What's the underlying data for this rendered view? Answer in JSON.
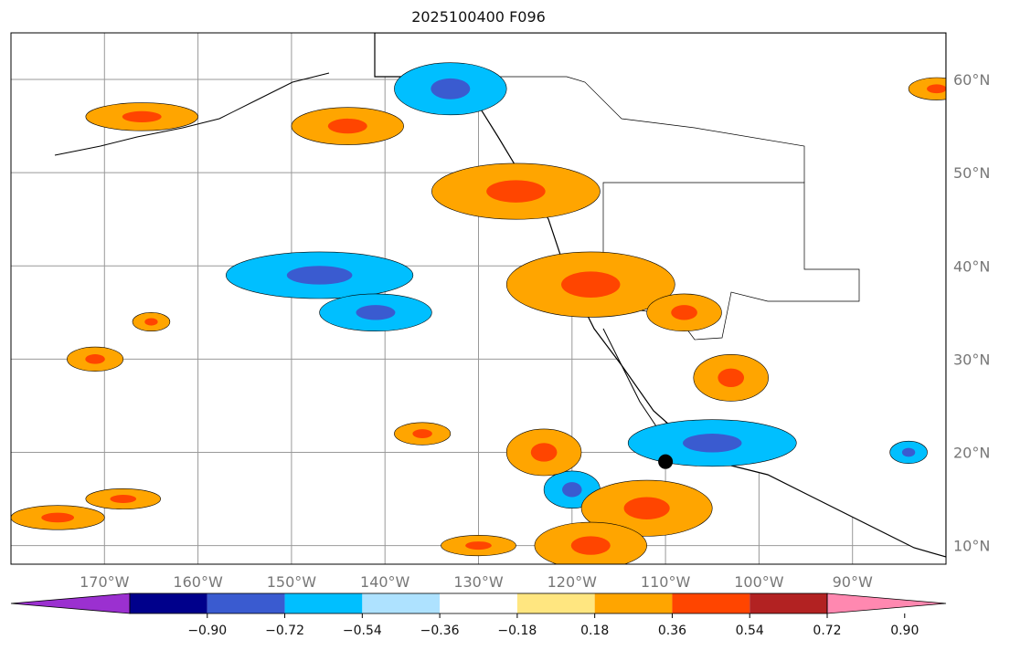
{
  "title": "2025100400 F096",
  "map": {
    "lon_range": [
      -180,
      -80
    ],
    "lat_range": [
      8,
      65
    ],
    "graticule": true,
    "lon_ticks": [
      {
        "v": -170,
        "label": "170°W"
      },
      {
        "v": -160,
        "label": "160°W"
      },
      {
        "v": -150,
        "label": "150°W"
      },
      {
        "v": -140,
        "label": "140°W"
      },
      {
        "v": -130,
        "label": "130°W"
      },
      {
        "v": -120,
        "label": "120°W"
      },
      {
        "v": -110,
        "label": "110°W"
      },
      {
        "v": -100,
        "label": "100°W"
      },
      {
        "v": -90,
        "label": "90°W"
      }
    ],
    "lat_ticks": [
      {
        "v": 60,
        "label": "60°N"
      },
      {
        "v": 50,
        "label": "50°N"
      },
      {
        "v": 40,
        "label": "40°N"
      },
      {
        "v": 30,
        "label": "30°N"
      },
      {
        "v": 20,
        "label": "20°N"
      },
      {
        "v": 10,
        "label": "10°N"
      }
    ],
    "positive_regions": [
      {
        "name": "west-coast-band",
        "lon": -126,
        "lat": 48,
        "rlon": 9,
        "rlat": 3
      },
      {
        "name": "great-basin",
        "lon": -118,
        "lat": 38,
        "rlon": 9,
        "rlat": 3.5
      },
      {
        "name": "four-corners",
        "lon": -108,
        "lat": 35,
        "rlon": 4,
        "rlat": 2
      },
      {
        "name": "mexico-north",
        "lon": -103,
        "lat": 28,
        "rlon": 4,
        "rlat": 2.5
      },
      {
        "name": "east-pacific",
        "lon": -112,
        "lat": 14,
        "rlon": 7,
        "rlat": 3
      },
      {
        "name": "east-pacific-south",
        "lon": -118,
        "lat": 10,
        "rlon": 6,
        "rlat": 2.5
      },
      {
        "name": "baja-offshore",
        "lon": -123,
        "lat": 20,
        "rlon": 4,
        "rlat": 2.5
      },
      {
        "name": "aleutians",
        "lon": -166,
        "lat": 56,
        "rlon": 6,
        "rlat": 1.5
      },
      {
        "name": "gulf-alaska",
        "lon": -144,
        "lat": 55,
        "rlon": 6,
        "rlat": 2
      },
      {
        "name": "north-pacific",
        "lon": -171,
        "lat": 30,
        "rlon": 3,
        "rlat": 1.3
      },
      {
        "name": "hawaii-west",
        "lon": -175,
        "lat": 13,
        "rlon": 5,
        "rlat": 1.3
      },
      {
        "name": "hawaii-east",
        "lon": -136,
        "lat": 22,
        "rlon": 3,
        "rlat": 1.2
      },
      {
        "name": "hudson-east",
        "lon": -81,
        "lat": 59,
        "rlon": 3,
        "rlat": 1.2
      },
      {
        "name": "central-pacific",
        "lon": -168,
        "lat": 15,
        "rlon": 4,
        "rlat": 1.1
      },
      {
        "name": "south-pacific",
        "lon": -130,
        "lat": 10,
        "rlon": 4,
        "rlat": 1.1
      },
      {
        "name": "pacific-mid",
        "lon": -165,
        "lat": 34,
        "rlon": 2,
        "rlat": 1
      }
    ],
    "negative_regions": [
      {
        "name": "alaska-panhandle",
        "lon": -133,
        "lat": 59,
        "rlon": 6,
        "rlat": 2.8
      },
      {
        "name": "pacific-trough",
        "lon": -147,
        "lat": 39,
        "rlon": 10,
        "rlat": 2.5
      },
      {
        "name": "pacific-trough-south",
        "lon": -141,
        "lat": 35,
        "rlon": 6,
        "rlat": 2
      },
      {
        "name": "mexico-south",
        "lon": -105,
        "lat": 21,
        "rlon": 9,
        "rlat": 2.5
      },
      {
        "name": "offshore-mexico",
        "lon": -120,
        "lat": 16,
        "rlon": 3,
        "rlat": 2
      },
      {
        "name": "caribbean",
        "lon": -84,
        "lat": 20,
        "rlon": 2,
        "rlat": 1.2
      }
    ],
    "markers": [
      {
        "lon": -110,
        "lat": 19,
        "kind": "filled"
      }
    ]
  },
  "colorbar": {
    "colors": [
      "#9b30d0",
      "#00008b",
      "#3a5bd0",
      "#00bfff",
      "#aee2ff",
      "#ffffff",
      "#ffe680",
      "#ffa500",
      "#ff4500",
      "#b22222",
      "#ff88b0"
    ],
    "tick_labels": [
      "−0.90",
      "−0.72",
      "−0.54",
      "−0.36",
      "−0.18",
      "0.18",
      "0.36",
      "0.54",
      "0.72",
      "0.90"
    ]
  }
}
